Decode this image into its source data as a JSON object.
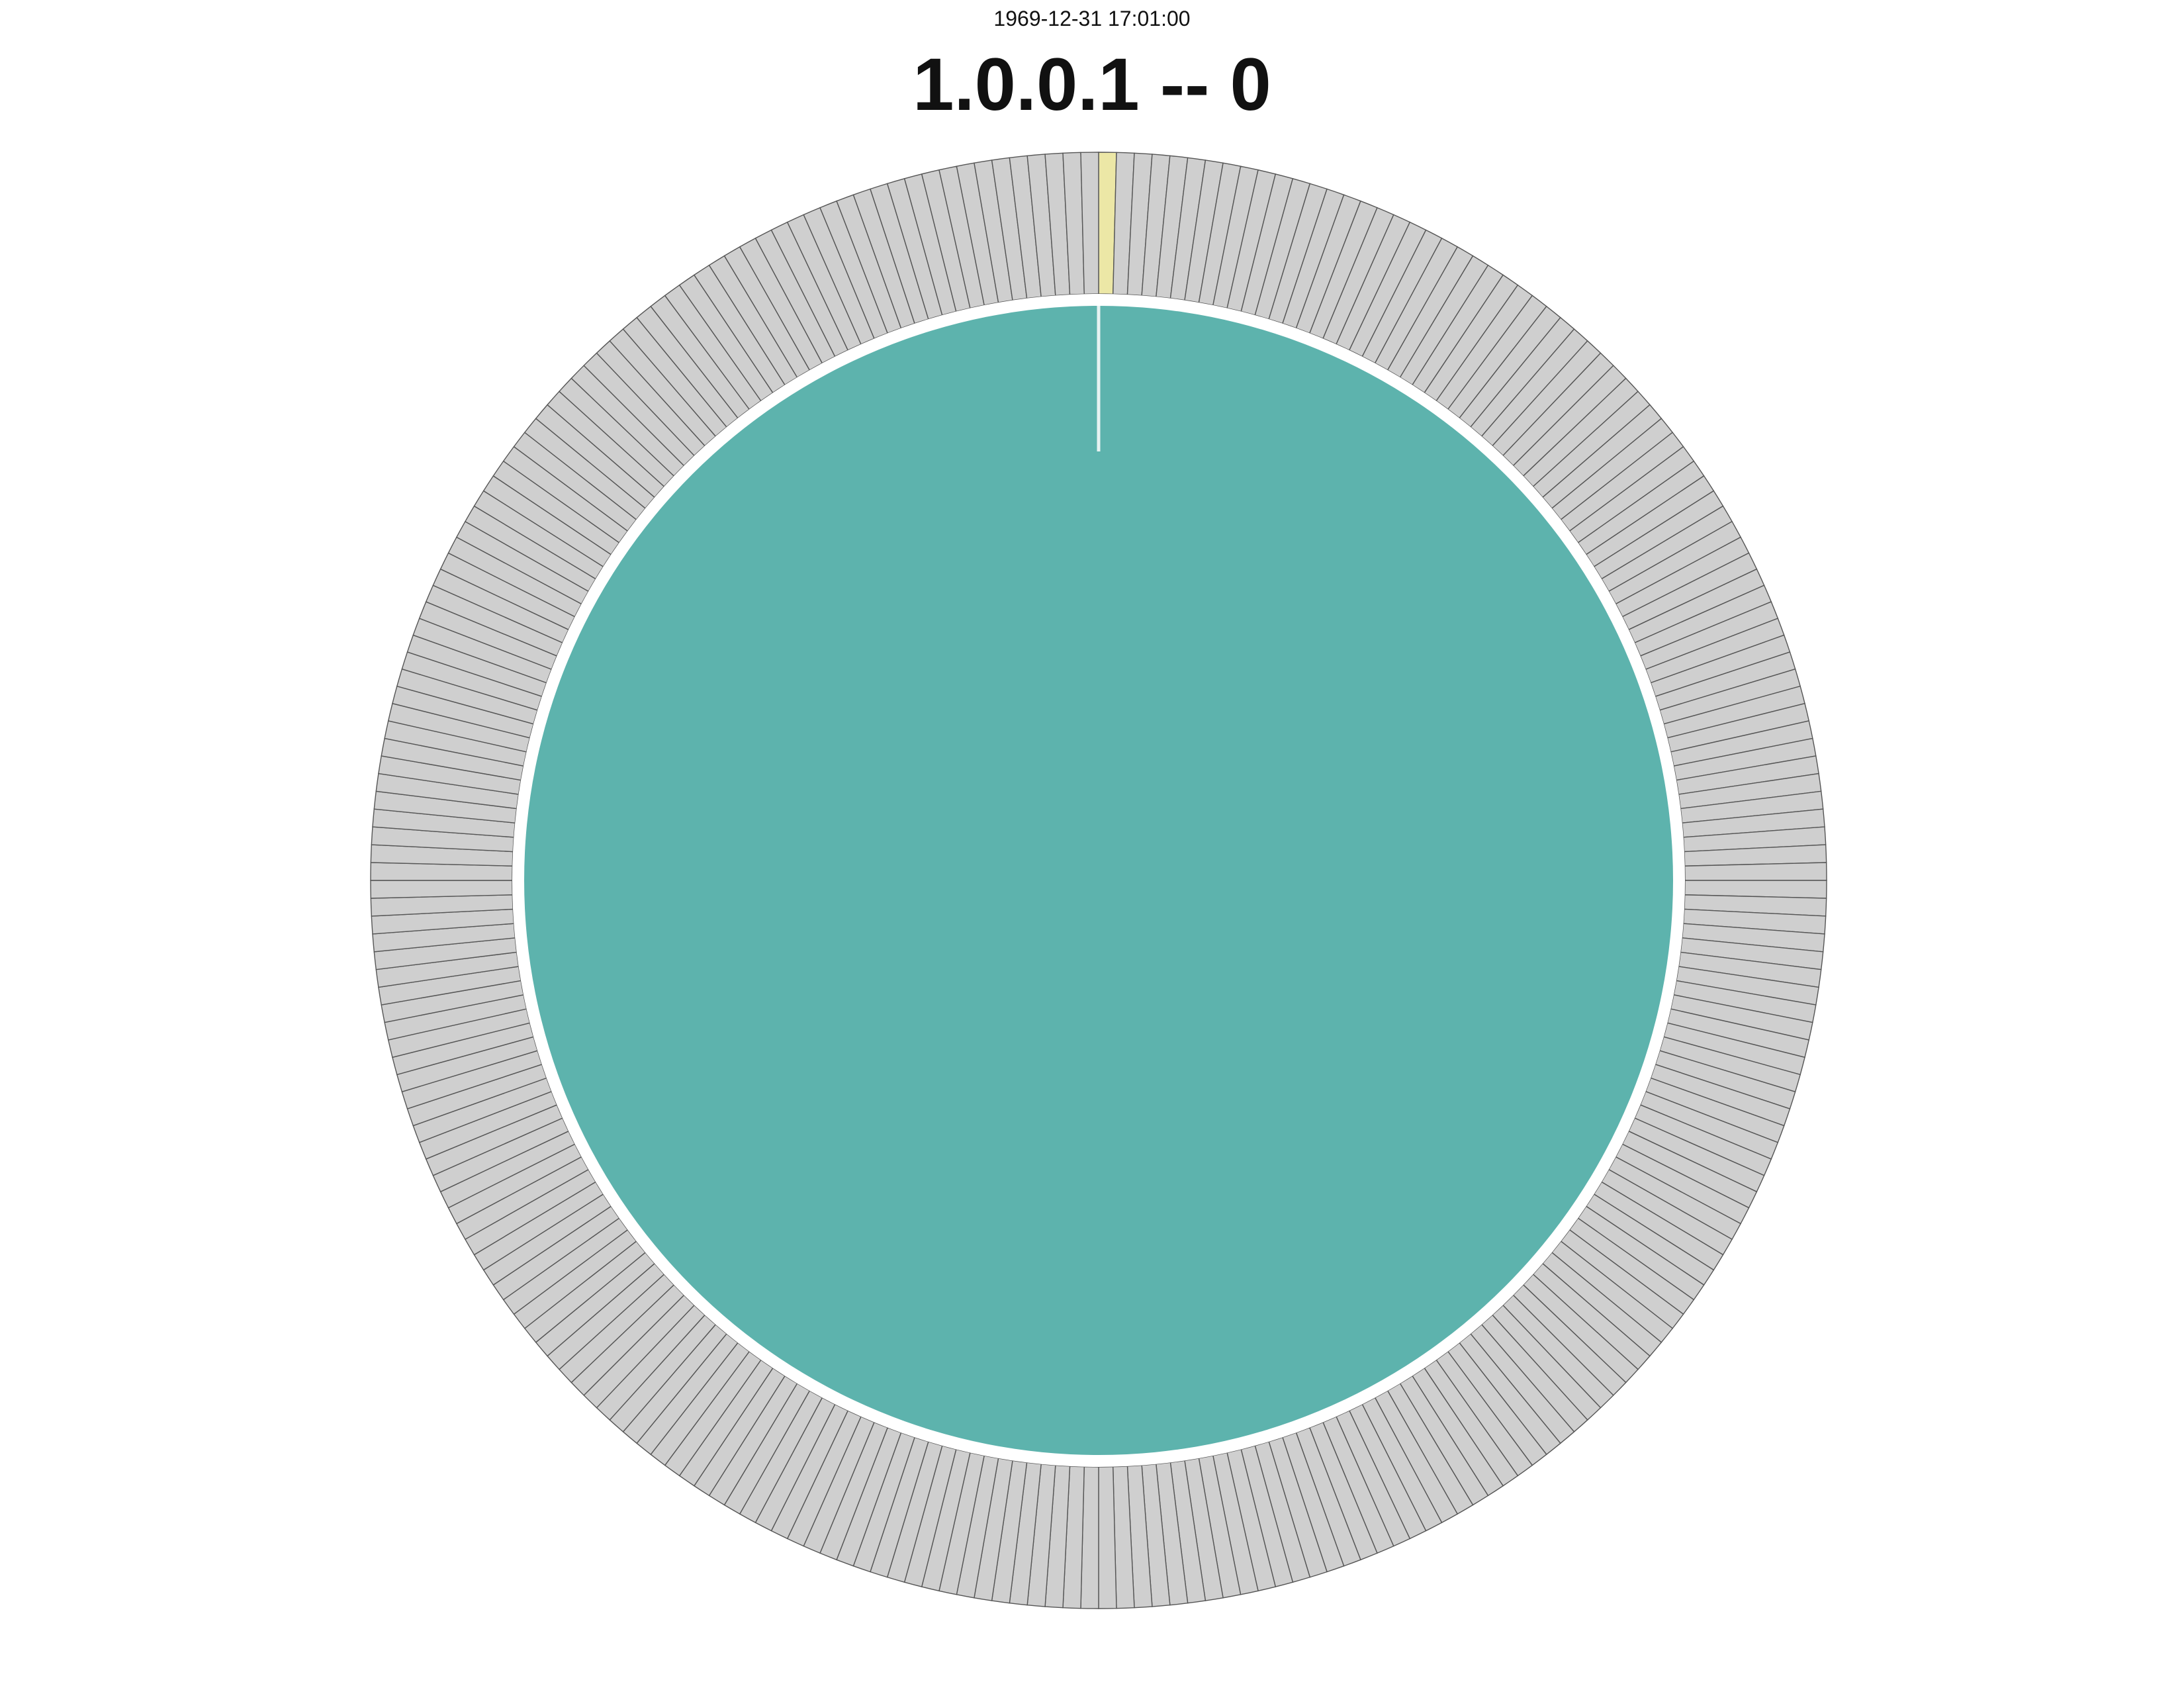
{
  "header": {
    "timestamp": "1969-12-31 17:01:00",
    "title": "1.0.0.1 -- 0"
  },
  "colors": {
    "inner_fill": "#5db3ad",
    "outer_segment_fill": "#cfcfcf",
    "outer_segment_stroke": "#555555",
    "highlight_segment": "#ece7a6",
    "inner_highlight_line": "#e6f2f1",
    "separator": "#ffffff",
    "background": "#ffffff"
  },
  "chart_data": {
    "type": "sunburst",
    "title": "1.0.0.1 -- 0",
    "subtitle": "1969-12-31 17:01:00",
    "inner_ring": [
      {
        "value": 1
      }
    ],
    "outer_ring": {
      "segment_count": 256,
      "highlighted_segment_index": 0
    },
    "legend": "none",
    "grid": false
  }
}
